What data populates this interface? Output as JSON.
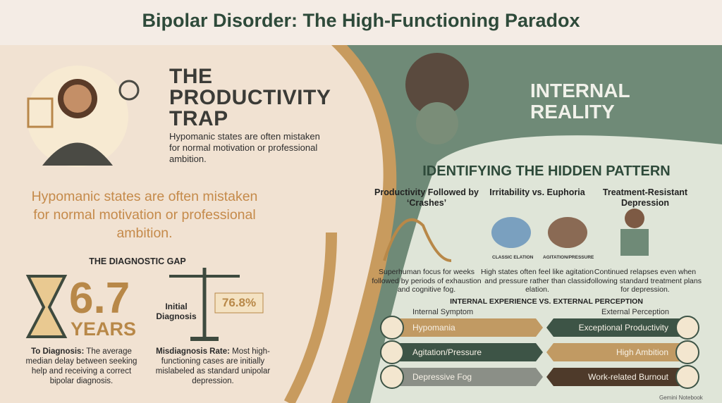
{
  "header": {
    "title": "Bipolar Disorder: The High-Functioning Paradox"
  },
  "productivity_trap": {
    "heading": "THE PRODUCTIVITY TRAP",
    "description": "Hypomanic states are often mistaken for normal motivation or professional ambition.",
    "callout": "Hypomanic states are often mistaken for normal motivation or professional ambition."
  },
  "diagnostic_gap": {
    "heading": "THE DIAGNOSTIC GAP",
    "delay": {
      "value": "6.7",
      "unit": "YEARS",
      "label": "To Diagnosis:",
      "text": "The average median delay between seeking help and receiving a correct bipolar diagnosis."
    },
    "misdiagnosis": {
      "scale_label": "Initial Diagnosis",
      "value": "76.8%",
      "label": "Misdiagnosis Rate:",
      "text": "Most high-functioning cases are initially mislabeled as standard unipolar depression."
    }
  },
  "internal_reality": {
    "heading": "INTERNAL REALITY"
  },
  "hidden_pattern": {
    "heading": "IDENTIFYING THE HIDDEN PATTERN",
    "columns": [
      {
        "title": "Productivity Followed by ‘Crashes’",
        "text": "Superhuman focus for weeks followed by periods of exhaustion and cognitive fog."
      },
      {
        "title": "Irritability vs. Euphoria",
        "text": "High states often feel like agitation and pressure rather than classic elation.",
        "labels": [
          "CLASSIC ELATION",
          "AGITATION/PRESSURE"
        ]
      },
      {
        "title": "Treatment-Resistant Depression",
        "text": "Continued relapses even when following standard treatment plans for depression."
      }
    ]
  },
  "comparison": {
    "heading": "INTERNAL EXPERIENCE VS. EXTERNAL PERCEPTION",
    "left_header": "Internal Symptom",
    "right_header": "External Perception",
    "rows": [
      [
        "Hypomania",
        "Exceptional Productivity"
      ],
      [
        "Agitation/Pressure",
        "High Ambition"
      ],
      [
        "Depressive Fog",
        "Work-related Burnout"
      ]
    ]
  },
  "footer": {
    "brand": "Gemini Notebook"
  }
}
